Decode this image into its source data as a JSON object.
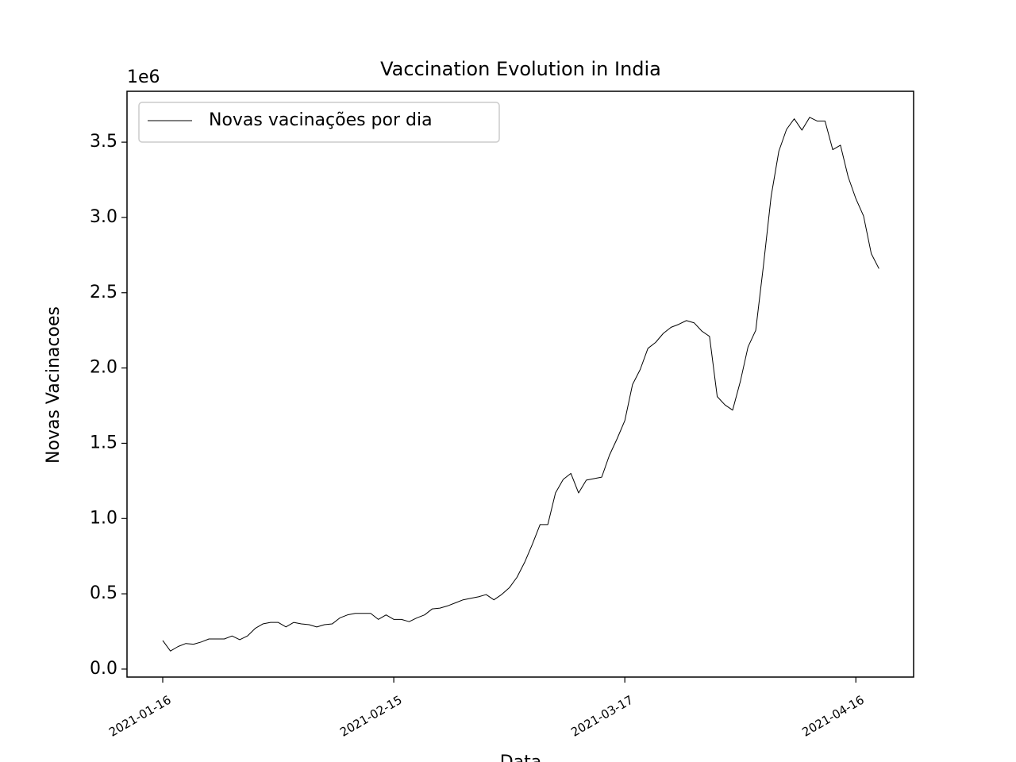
{
  "chart_data": {
    "type": "line",
    "title": "Vaccination Evolution in India",
    "x_label": "Data",
    "y_label": "Novas Vacinacoes",
    "y_offset_label": "1e6",
    "x": [
      "2021-01-16",
      "2021-01-17",
      "2021-01-18",
      "2021-01-19",
      "2021-01-20",
      "2021-01-21",
      "2021-01-22",
      "2021-01-23",
      "2021-01-24",
      "2021-01-25",
      "2021-01-26",
      "2021-01-27",
      "2021-01-28",
      "2021-01-29",
      "2021-01-30",
      "2021-01-31",
      "2021-02-01",
      "2021-02-02",
      "2021-02-03",
      "2021-02-04",
      "2021-02-05",
      "2021-02-06",
      "2021-02-07",
      "2021-02-08",
      "2021-02-09",
      "2021-02-10",
      "2021-02-11",
      "2021-02-12",
      "2021-02-13",
      "2021-02-14",
      "2021-02-15",
      "2021-02-16",
      "2021-02-17",
      "2021-02-18",
      "2021-02-19",
      "2021-02-20",
      "2021-02-21",
      "2021-02-22",
      "2021-02-23",
      "2021-02-24",
      "2021-02-25",
      "2021-02-26",
      "2021-02-27",
      "2021-02-28",
      "2021-03-01",
      "2021-03-02",
      "2021-03-03",
      "2021-03-04",
      "2021-03-05",
      "2021-03-06",
      "2021-03-07",
      "2021-03-08",
      "2021-03-09",
      "2021-03-10",
      "2021-03-11",
      "2021-03-12",
      "2021-03-13",
      "2021-03-14",
      "2021-03-15",
      "2021-03-16",
      "2021-03-17",
      "2021-03-18",
      "2021-03-19",
      "2021-03-20",
      "2021-03-21",
      "2021-03-22",
      "2021-03-23",
      "2021-03-24",
      "2021-03-25",
      "2021-03-26",
      "2021-03-27",
      "2021-03-28",
      "2021-03-29",
      "2021-03-30",
      "2021-03-31",
      "2021-04-01",
      "2021-04-02",
      "2021-04-03",
      "2021-04-04",
      "2021-04-05",
      "2021-04-06",
      "2021-04-07",
      "2021-04-08",
      "2021-04-09",
      "2021-04-10",
      "2021-04-11",
      "2021-04-12",
      "2021-04-13",
      "2021-04-14",
      "2021-04-15",
      "2021-04-16",
      "2021-04-17",
      "2021-04-18",
      "2021-04-19"
    ],
    "series": [
      {
        "name": "Novas vacinações por dia",
        "color": "#000000",
        "values": [
          190000,
          120000,
          150000,
          170000,
          165000,
          180000,
          200000,
          200000,
          200000,
          220000,
          195000,
          220000,
          270000,
          300000,
          310000,
          310000,
          280000,
          310000,
          300000,
          295000,
          280000,
          295000,
          300000,
          340000,
          360000,
          370000,
          370000,
          370000,
          330000,
          360000,
          330000,
          330000,
          315000,
          340000,
          360000,
          400000,
          405000,
          420000,
          440000,
          460000,
          470000,
          480000,
          495000,
          460000,
          495000,
          540000,
          610000,
          710000,
          830000,
          960000,
          960000,
          1170000,
          1260000,
          1300000,
          1170000,
          1255000,
          1265000,
          1275000,
          1420000,
          1530000,
          1650000,
          1890000,
          1990000,
          2130000,
          2170000,
          2230000,
          2270000,
          2290000,
          2315000,
          2300000,
          2245000,
          2210000,
          1810000,
          1755000,
          1720000,
          1910000,
          2140000,
          2250000,
          2680000,
          3140000,
          3440000,
          3585000,
          3655000,
          3580000,
          3665000,
          3640000,
          3640000,
          3450000,
          3480000,
          3270000,
          3125000,
          3010000,
          2760000,
          2660000
        ]
      }
    ],
    "xlim": [
      "2021-01-11T08:40:00Z",
      "2021-04-23T12:00:00Z"
    ],
    "xticks": [
      "2021-01-16",
      "2021-02-15",
      "2021-03-17",
      "2021-04-16"
    ],
    "ylim": [
      -53000,
      3838000
    ],
    "yticks": [
      {
        "value": 0,
        "label": "0.0"
      },
      {
        "value": 500000,
        "label": "0.5"
      },
      {
        "value": 1000000,
        "label": "1.0"
      },
      {
        "value": 1500000,
        "label": "1.5"
      },
      {
        "value": 2000000,
        "label": "2.0"
      },
      {
        "value": 2500000,
        "label": "2.5"
      },
      {
        "value": 3000000,
        "label": "3.0"
      },
      {
        "value": 3500000,
        "label": "3.5"
      }
    ],
    "legend": "upper left",
    "grid": false
  }
}
